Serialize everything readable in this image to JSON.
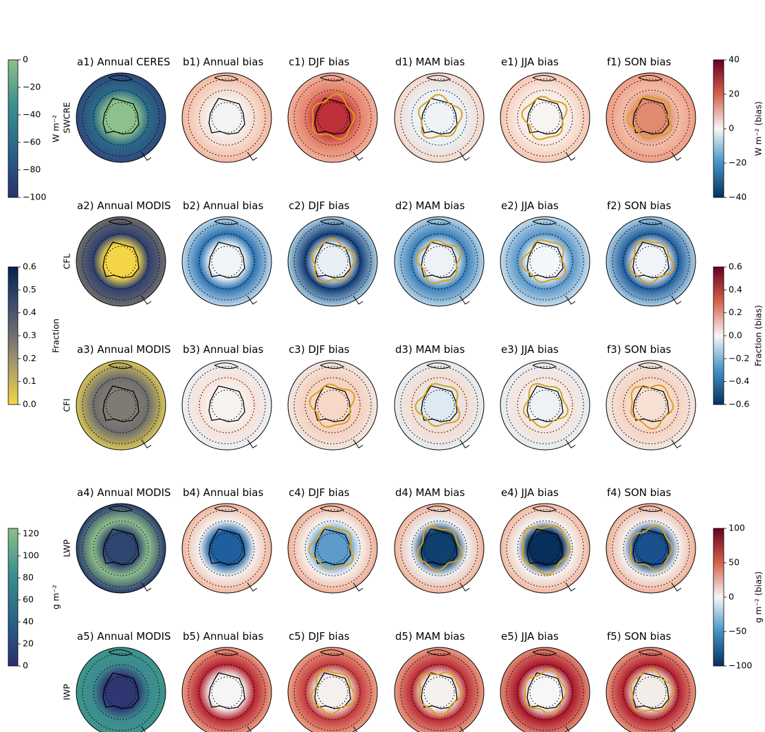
{
  "rows": [
    {
      "label": "SWCRE",
      "titles": [
        "a1) Annual CERES",
        "b1) Annual bias",
        "c1) DJF bias",
        "d1) MAM bias",
        "e1) JJA bias",
        "f1) SON bias"
      ]
    },
    {
      "label": "CFL",
      "titles": [
        "a2) Annual MODIS",
        "b2) Annual bias",
        "c2) DJF bias",
        "d2) MAM bias",
        "e2) JJA bias",
        "f2) SON bias"
      ]
    },
    {
      "label": "CFI",
      "titles": [
        "a3) Annual MODIS",
        "b3) Annual bias",
        "c3) DJF bias",
        "d3) MAM bias",
        "e3) JJA bias",
        "f3) SON bias"
      ]
    },
    {
      "label": "LWP",
      "titles": [
        "a4) Annual MODIS",
        "b4) Annual bias",
        "c4) DJF bias",
        "d4) MAM bias",
        "e4) JJA bias",
        "f4) SON bias"
      ]
    },
    {
      "label": "IWP",
      "titles": [
        "a5) Annual MODIS",
        "b5) Annual bias",
        "c5) DJF bias",
        "d5) MAM bias",
        "e5) JJA bias",
        "f5) SON bias"
      ]
    }
  ],
  "colorbars": [
    {
      "side": "left",
      "label": "W m⁻²",
      "lim": [
        -100,
        0
      ],
      "colors": [
        "#2b2f6b",
        "#29638a",
        "#3b8f8e",
        "#8cc08c"
      ],
      "ticks": [
        {
          "value": -100,
          "label": "−100"
        },
        {
          "value": -80,
          "label": "−80"
        },
        {
          "value": -60,
          "label": "−60"
        },
        {
          "value": -40,
          "label": "−40"
        },
        {
          "value": -20,
          "label": "−20"
        },
        0
      ]
    },
    {
      "side": "left",
      "label": "Fraction",
      "lim": [
        0,
        0.6
      ],
      "colors": [
        "#f6d740",
        "#b1a36a",
        "#6f6f70",
        "#3a4a6c",
        "#00224e"
      ],
      "ticks": [
        {
          "value": 0,
          "label": "0.0"
        },
        0.1,
        0.2,
        0.3,
        0.4,
        0.5,
        0.6
      ]
    },
    {
      "side": "left",
      "label": "g m⁻²",
      "lim": [
        0,
        125
      ],
      "colors": [
        "#2b2f6b",
        "#29638a",
        "#3b8f8e",
        "#8cc08c"
      ],
      "ticks": [
        0,
        20,
        40,
        60,
        80,
        100,
        120
      ]
    },
    {
      "side": "right",
      "label": "W m⁻² (bias)",
      "lim": [
        -40,
        40
      ],
      "colors": [
        "#053061",
        "#4393c3",
        "#f7f7f7",
        "#d6604d",
        "#67001f"
      ],
      "ticks": [
        {
          "value": -40,
          "label": "−40"
        },
        {
          "value": -20,
          "label": "−20"
        },
        0,
        20,
        40
      ]
    },
    {
      "side": "right",
      "label": "Fraction (bias)",
      "lim": [
        -0.6,
        0.6
      ],
      "colors": [
        "#053061",
        "#4393c3",
        "#f7f7f7",
        "#d6604d",
        "#67001f"
      ],
      "ticks": [
        {
          "value": -0.6,
          "label": "−0.6"
        },
        {
          "value": -0.4,
          "label": "−0.4"
        },
        {
          "value": -0.2,
          "label": "−0.2"
        },
        {
          "value": 0,
          "label": "0.0"
        },
        0.2,
        0.4,
        0.6
      ]
    },
    {
      "side": "right",
      "label": "g m⁻² (bias)",
      "lim": [
        -100,
        100
      ],
      "colors": [
        "#053061",
        "#4393c3",
        "#f7f7f7",
        "#d6604d",
        "#67001f"
      ],
      "ticks": [
        {
          "value": -100,
          "label": "−100"
        },
        {
          "value": -50,
          "label": "−50"
        },
        0,
        50,
        100
      ]
    }
  ]
}
